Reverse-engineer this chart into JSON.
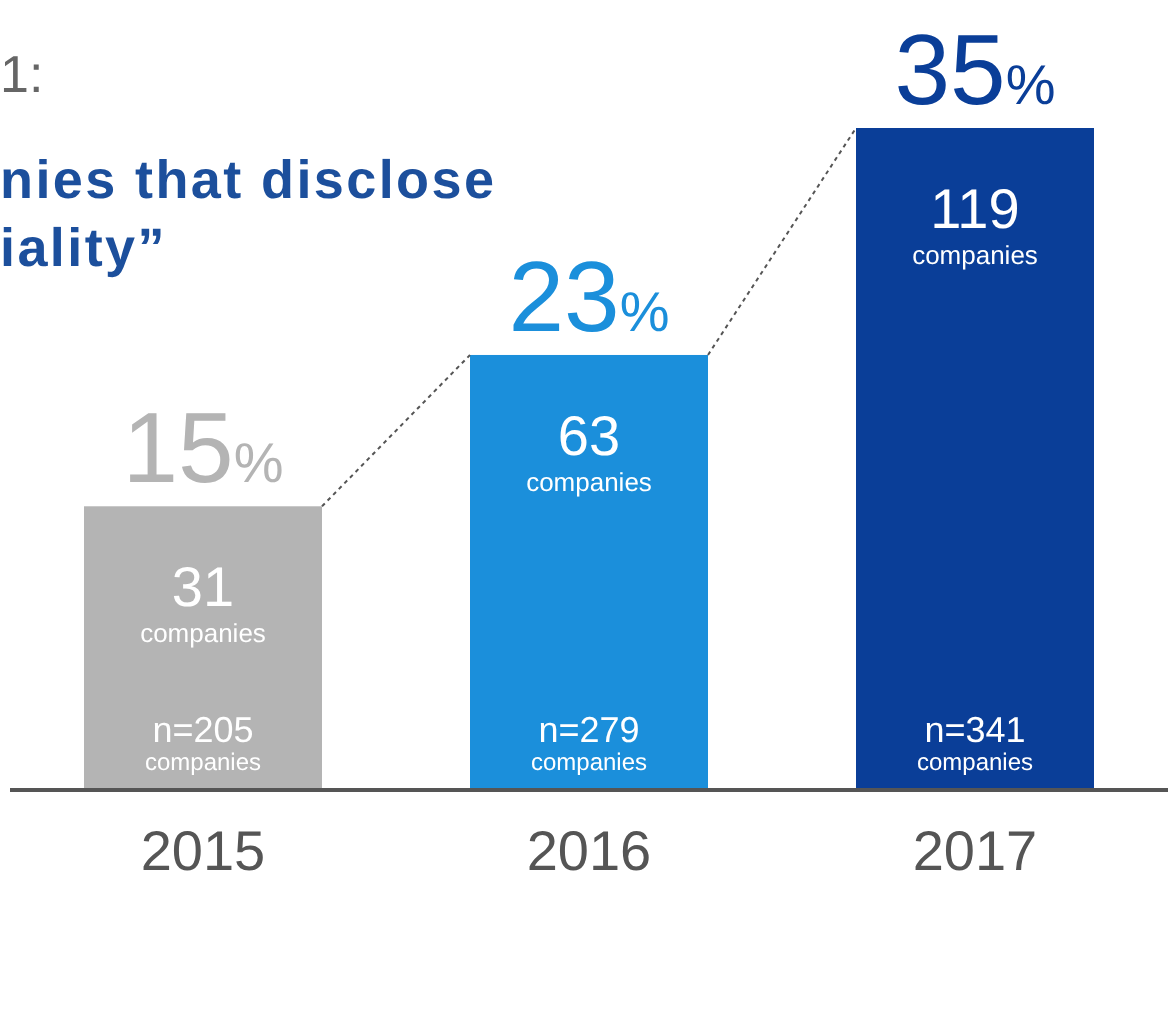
{
  "chart_data": {
    "type": "bar",
    "title": "1:",
    "subtitle": "nies that disclose\niality”",
    "categories": [
      "2015",
      "2016",
      "2017"
    ],
    "values": [
      15,
      23,
      35
    ],
    "value_labels": [
      "15%",
      "23%",
      "35%"
    ],
    "colors": [
      "#b4b4b4",
      "#1b8fdb",
      "#0a3e98"
    ],
    "annotations": [
      "31 companies",
      "n=205 companies",
      "63 companies",
      "n=279 companies",
      "119 companies",
      "n=341 companies"
    ]
  }
}
